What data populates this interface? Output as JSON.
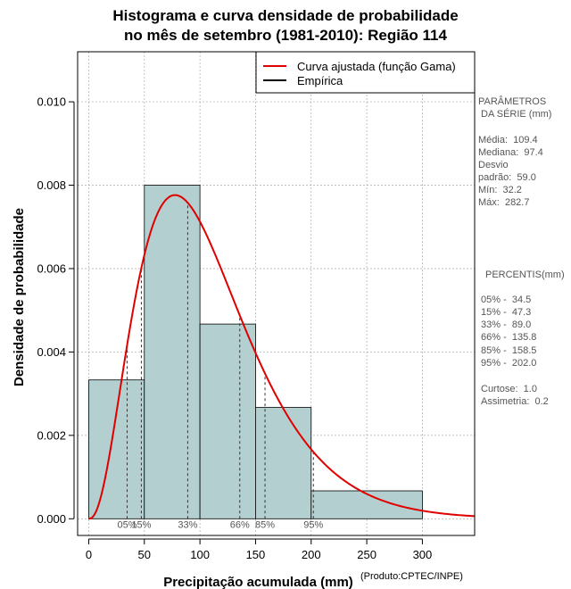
{
  "title_line1": "Histograma e curva densidade de probabilidade",
  "title_line2": "no mês de setembro (1981-2010): Região 114",
  "credit": "(Produto:CPTEC/INPE)",
  "params": {
    "heading1": "PARÂMETROS",
    "heading2": "DA SÉRIE (mm)",
    "media": "Média:  109.4",
    "mediana": "Mediana:  97.4",
    "desvio1": "Desvio",
    "desvio2": "padrão:  59.0",
    "min": "Mín:  32.2",
    "max": "Máx:  282.7"
  },
  "percentis": {
    "heading": "PERCENTIS(mm)",
    "p05": "05% -  34.5",
    "p15": "15% -  47.3",
    "p33": "33% -  89.0",
    "p66": "66% -  135.8",
    "p85": "85% -  158.5",
    "p95": "95% -  202.0",
    "curtose": "Curtose:  1.0",
    "assimetria": "Assimetria:  0.2"
  },
  "colors": {
    "bar": "#b3cfcf",
    "curve": "#e00000",
    "grid": "#aaaaaa"
  },
  "chart_data": {
    "type": "bar",
    "subtype": "histogram_with_density_curve",
    "xlabel": "Precipitação acumulada (mm)",
    "ylabel": "Densidade de probabilidade",
    "xlim": [
      -10,
      347
    ],
    "ylim": [
      -0.0004,
      0.0112
    ],
    "x_ticks": [
      0,
      50,
      100,
      150,
      200,
      250,
      300
    ],
    "y_ticks": [
      0.0,
      0.002,
      0.004,
      0.006,
      0.008,
      0.01
    ],
    "y_tick_labels": [
      "0.000",
      "0.002",
      "0.004",
      "0.006",
      "0.008",
      "0.010"
    ],
    "bins": [
      {
        "x0": 0,
        "x1": 50,
        "density": 0.00333
      },
      {
        "x0": 50,
        "x1": 100,
        "density": 0.008
      },
      {
        "x0": 100,
        "x1": 150,
        "density": 0.00467
      },
      {
        "x0": 150,
        "x1": 200,
        "density": 0.00267
      },
      {
        "x0": 200,
        "x1": 300,
        "density": 0.00067
      }
    ],
    "curve": {
      "name": "Curva ajustada (função Gama)",
      "shape": 3.44,
      "scale": 31.8,
      "x_range": [
        0,
        347
      ]
    },
    "percentiles": [
      {
        "label": "05%",
        "value": 34.5
      },
      {
        "label": "15%",
        "value": 47.3
      },
      {
        "label": "33%",
        "value": 89.0
      },
      {
        "label": "66%",
        "value": 135.8
      },
      {
        "label": "85%",
        "value": 158.5
      },
      {
        "label": "95%",
        "value": 202.0
      }
    ],
    "legend": {
      "position": "top-right",
      "entries": [
        {
          "label": "Curva ajustada (função Gama)",
          "color": "#e00000"
        },
        {
          "label": "Empírica",
          "color": "#000000"
        }
      ]
    },
    "grid": true
  }
}
